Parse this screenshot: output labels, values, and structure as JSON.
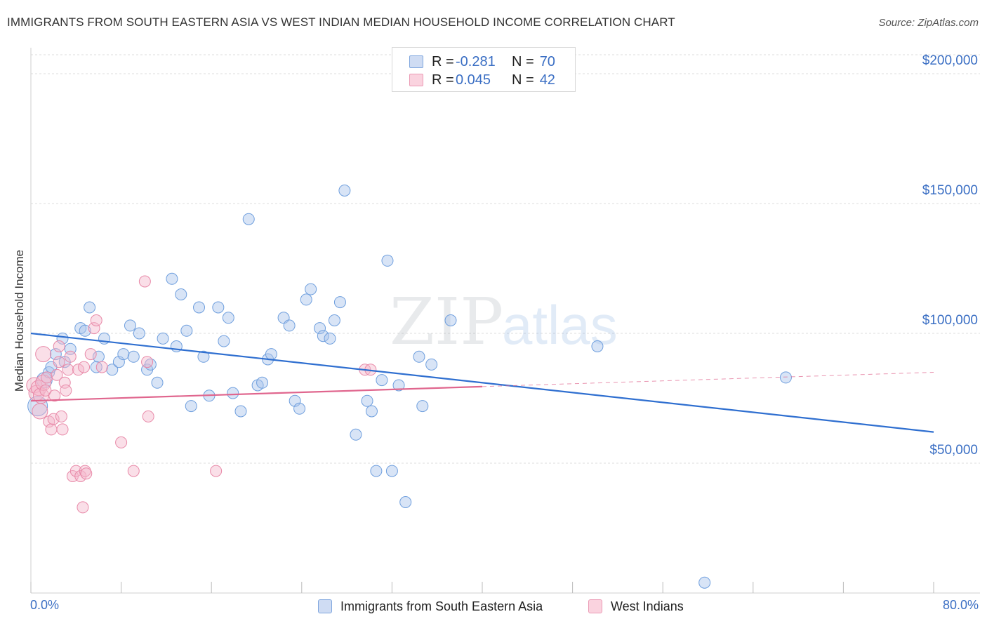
{
  "title": "IMMIGRANTS FROM SOUTH EASTERN ASIA VS WEST INDIAN MEDIAN HOUSEHOLD INCOME CORRELATION CHART",
  "source": "Source: ZipAtlas.com",
  "watermark": {
    "zip": "ZIP",
    "atlas": "atlas"
  },
  "legend": {
    "rows": [
      {
        "r_label": "R =",
        "r_value": "-0.281",
        "n_label": "N =",
        "n_value": "70",
        "color": "#a9c4ec"
      },
      {
        "r_label": "R =",
        "r_value": "0.045",
        "n_label": "N =",
        "n_value": "42",
        "color": "#f5b8cc"
      }
    ]
  },
  "bottom_legend": [
    {
      "label": "Immigrants from South Eastern Asia",
      "color": "#a9c4ec"
    },
    {
      "label": "West Indians",
      "color": "#f5b8cc"
    }
  ],
  "chart_data": {
    "type": "scatter",
    "xlabel": "",
    "ylabel": "Median Household Income",
    "xlim": [
      0,
      80
    ],
    "ylim": [
      0,
      210000
    ],
    "x_tick_labels": [
      "0.0%",
      "80.0%"
    ],
    "y_tick_labels": [
      {
        "value": 50000,
        "label": "$50,000"
      },
      {
        "value": 100000,
        "label": "$100,000"
      },
      {
        "value": 150000,
        "label": "$150,000"
      },
      {
        "value": 200000,
        "label": "$200,000"
      }
    ],
    "grid": true,
    "series": [
      {
        "name": "Immigrants from South Eastern Asia",
        "color": "#6f9fde",
        "fill": "#a9c4ec",
        "trend": {
          "x": [
            0,
            80
          ],
          "y": [
            100000,
            62000
          ],
          "color": "#2f6fd0"
        },
        "points": [
          [
            0.6,
            72000
          ],
          [
            1.2,
            82000
          ],
          [
            1.6,
            85000
          ],
          [
            1.8,
            87000
          ],
          [
            2.2,
            92000
          ],
          [
            2.8,
            98000
          ],
          [
            3.5,
            94000
          ],
          [
            3.0,
            89000
          ],
          [
            4.4,
            102000
          ],
          [
            5.2,
            110000
          ],
          [
            4.8,
            101000
          ],
          [
            6.0,
            91000
          ],
          [
            6.5,
            98000
          ],
          [
            5.8,
            87000
          ],
          [
            7.2,
            86000
          ],
          [
            7.8,
            89000
          ],
          [
            8.2,
            92000
          ],
          [
            8.8,
            103000
          ],
          [
            9.1,
            91000
          ],
          [
            9.6,
            100000
          ],
          [
            10.3,
            86000
          ],
          [
            10.6,
            88000
          ],
          [
            11.2,
            81000
          ],
          [
            11.7,
            98000
          ],
          [
            12.5,
            121000
          ],
          [
            12.9,
            95000
          ],
          [
            13.3,
            115000
          ],
          [
            13.8,
            101000
          ],
          [
            14.2,
            72000
          ],
          [
            14.9,
            110000
          ],
          [
            15.3,
            91000
          ],
          [
            15.8,
            76000
          ],
          [
            16.6,
            110000
          ],
          [
            17.1,
            97000
          ],
          [
            17.5,
            106000
          ],
          [
            17.9,
            77000
          ],
          [
            18.6,
            70000
          ],
          [
            19.3,
            144000
          ],
          [
            20.1,
            80000
          ],
          [
            20.5,
            81000
          ],
          [
            21.0,
            90000
          ],
          [
            21.3,
            92000
          ],
          [
            22.4,
            106000
          ],
          [
            22.9,
            103000
          ],
          [
            23.4,
            74000
          ],
          [
            23.8,
            71000
          ],
          [
            24.4,
            113000
          ],
          [
            24.8,
            117000
          ],
          [
            25.6,
            102000
          ],
          [
            25.9,
            99000
          ],
          [
            26.5,
            98000
          ],
          [
            26.9,
            105000
          ],
          [
            27.4,
            112000
          ],
          [
            27.8,
            155000
          ],
          [
            28.8,
            61000
          ],
          [
            29.8,
            74000
          ],
          [
            30.2,
            70000
          ],
          [
            30.6,
            47000
          ],
          [
            31.1,
            82000
          ],
          [
            31.6,
            128000
          ],
          [
            32.0,
            47000
          ],
          [
            32.6,
            80000
          ],
          [
            33.2,
            35000
          ],
          [
            34.4,
            91000
          ],
          [
            34.7,
            72000
          ],
          [
            35.5,
            88000
          ],
          [
            37.2,
            105000
          ],
          [
            50.2,
            95000
          ],
          [
            66.9,
            83000
          ],
          [
            59.7,
            4000
          ]
        ]
      },
      {
        "name": "West Indians",
        "color": "#e889a8",
        "fill": "#f5b8cc",
        "trend": {
          "x": [
            0,
            40
          ],
          "y": [
            74000,
            79500
          ],
          "color": "#e0668e"
        },
        "trend_extension": {
          "x": [
            40,
            80
          ],
          "y": [
            79500,
            85000
          ]
        },
        "points": [
          [
            0.3,
            80000
          ],
          [
            0.5,
            77000
          ],
          [
            0.7,
            79000
          ],
          [
            0.9,
            76000
          ],
          [
            1.1,
            81000
          ],
          [
            1.3,
            78000
          ],
          [
            1.1,
            92000
          ],
          [
            1.4,
            83000
          ],
          [
            1.6,
            66000
          ],
          [
            1.8,
            63000
          ],
          [
            2.0,
            67000
          ],
          [
            2.1,
            76000
          ],
          [
            2.3,
            84000
          ],
          [
            2.5,
            89000
          ],
          [
            2.5,
            95000
          ],
          [
            2.7,
            68000
          ],
          [
            2.8,
            63000
          ],
          [
            3.0,
            81000
          ],
          [
            3.1,
            78000
          ],
          [
            3.3,
            86000
          ],
          [
            3.5,
            91000
          ],
          [
            3.7,
            45000
          ],
          [
            4.0,
            47000
          ],
          [
            4.2,
            86000
          ],
          [
            4.4,
            45000
          ],
          [
            4.6,
            33000
          ],
          [
            4.7,
            87000
          ],
          [
            4.8,
            47000
          ],
          [
            4.9,
            46000
          ],
          [
            5.3,
            92000
          ],
          [
            5.6,
            102000
          ],
          [
            5.8,
            105000
          ],
          [
            6.3,
            87000
          ],
          [
            8.0,
            58000
          ],
          [
            9.1,
            47000
          ],
          [
            10.1,
            120000
          ],
          [
            10.3,
            89000
          ],
          [
            10.4,
            68000
          ],
          [
            16.4,
            47000
          ],
          [
            29.6,
            86000
          ],
          [
            30.1,
            86000
          ],
          [
            0.8,
            70000
          ]
        ]
      }
    ]
  }
}
